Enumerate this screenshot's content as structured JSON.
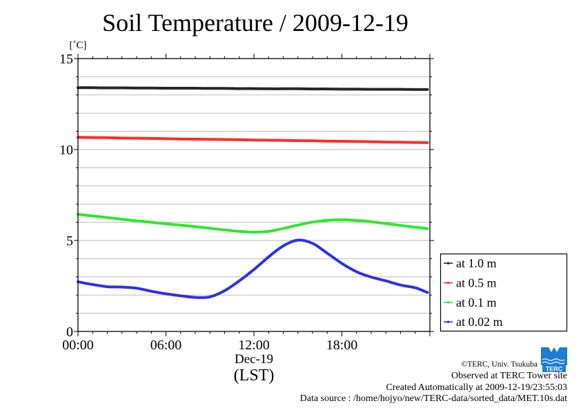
{
  "chart_data": {
    "type": "line",
    "title": "Soil Temperature / 2009-12-19",
    "ylabel": "[˚C]",
    "xlabel": "(LST)",
    "x_date_label": "Dec-19",
    "xlim": [
      "00:00",
      "24:00"
    ],
    "ylim": [
      0,
      15
    ],
    "xticks": [
      "00:00",
      "06:00",
      "12:00",
      "18:00"
    ],
    "yticks": [
      0,
      5,
      10,
      15
    ],
    "grid": true,
    "grid_step": 1,
    "legend": "bottom-right",
    "x": [
      "00:00",
      "01:00",
      "02:00",
      "03:00",
      "04:00",
      "05:00",
      "06:00",
      "07:00",
      "08:00",
      "09:00",
      "10:00",
      "11:00",
      "12:00",
      "13:00",
      "14:00",
      "15:00",
      "16:00",
      "17:00",
      "18:00",
      "19:00",
      "20:00",
      "21:00",
      "22:00",
      "23:00",
      "23:50"
    ],
    "series": [
      {
        "name": "at 1.0 m",
        "color": "#262626",
        "values": [
          13.4,
          13.4,
          13.39,
          13.39,
          13.38,
          13.38,
          13.37,
          13.37,
          13.37,
          13.36,
          13.36,
          13.35,
          13.35,
          13.34,
          13.34,
          13.34,
          13.33,
          13.33,
          13.32,
          13.32,
          13.31,
          13.31,
          13.31,
          13.3,
          13.3
        ]
      },
      {
        "name": "at 0.5 m",
        "color": "#ff2b2b",
        "values": [
          10.67,
          10.66,
          10.65,
          10.63,
          10.62,
          10.61,
          10.6,
          10.58,
          10.57,
          10.56,
          10.55,
          10.54,
          10.52,
          10.51,
          10.5,
          10.49,
          10.48,
          10.46,
          10.45,
          10.44,
          10.43,
          10.41,
          10.4,
          10.39,
          10.38
        ]
      },
      {
        "name": "at 0.1 m",
        "color": "#2de82d",
        "values": [
          6.44,
          6.35,
          6.26,
          6.17,
          6.08,
          6.0,
          5.92,
          5.84,
          5.76,
          5.67,
          5.58,
          5.5,
          5.46,
          5.5,
          5.66,
          5.85,
          6.01,
          6.11,
          6.14,
          6.1,
          6.03,
          5.93,
          5.83,
          5.73,
          5.65
        ]
      },
      {
        "name": "at 0.02 m",
        "color": "#2f2fe6",
        "values": [
          2.73,
          2.58,
          2.46,
          2.44,
          2.38,
          2.21,
          2.07,
          1.96,
          1.87,
          1.9,
          2.24,
          2.78,
          3.4,
          4.1,
          4.7,
          5.02,
          4.84,
          4.3,
          3.74,
          3.28,
          2.99,
          2.78,
          2.55,
          2.4,
          2.14
        ]
      }
    ]
  },
  "footer": {
    "copyright": "©TERC, Univ. Tsukuba",
    "observed": "Observed at TERC Tower site",
    "created": "Created Automatically at 2009-12-19/23:55:03",
    "source": "Data source : /home/hojyo/new/TERC-data/sorted_data/MET.10s.dat"
  },
  "logo": {
    "text": "TERC",
    "color": "#1e7bd6"
  }
}
